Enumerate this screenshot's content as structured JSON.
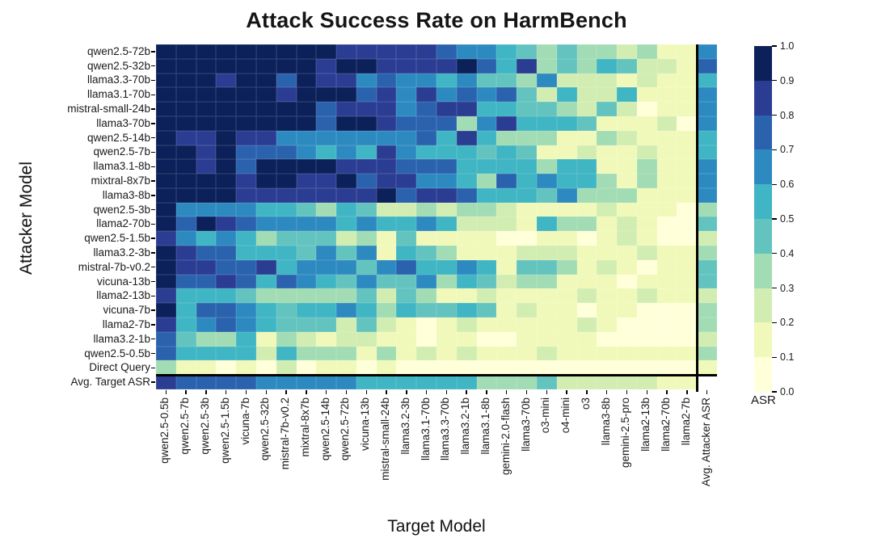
{
  "title": "Attack Success Rate on HarmBench",
  "x_axis_label": "Target Model",
  "y_axis_label": "Attacker Model",
  "colorbar": {
    "label": "ASR",
    "tick_labels": [
      "1.0",
      "0.9",
      "0.8",
      "0.7",
      "0.6",
      "0.5",
      "0.4",
      "0.3",
      "0.2",
      "0.1",
      "0.0"
    ],
    "bin_colors_low_to_high": [
      "#ffffd9",
      "#f0f9b9",
      "#d2edb2",
      "#a2dcb4",
      "#63c3bf",
      "#40b5c4",
      "#2d8ac0",
      "#2a62ae",
      "#2b3d93",
      "#0c2059"
    ],
    "empty_cell_color": "#ffffff"
  },
  "chart_data": {
    "type": "heatmap",
    "title": "Attack Success Rate on HarmBench",
    "xlabel": "Target Model",
    "ylabel": "Attacker Model",
    "vmin": 0.0,
    "vmax": 1.0,
    "colormap": "YlGnBu, 10 discrete bins",
    "legend_position": "right colorbar labeled ASR",
    "separators": {
      "thick_vertical_line_before_column": "Avg. Attacker ASR",
      "thick_horizontal_line_before_row": "Avg. Target ASR"
    },
    "x_categories": [
      "qwen2.5-0.5b",
      "qwen2.5-7b",
      "qwen2.5-3b",
      "qwen2.5-1.5b",
      "vicuna-7b",
      "qwen2.5-32b",
      "mistral-7b-v0.2",
      "mixtral-8x7b",
      "qwen2.5-14b",
      "qwen2.5-72b",
      "vicuna-13b",
      "mistral-small-24b",
      "llama3.2-3b",
      "llama3.1-70b",
      "llama3.3-70b",
      "llama3.2-1b",
      "llama3.1-8b",
      "gemini-2.0-flash",
      "llama3-70b",
      "o3-mini",
      "o4-mini",
      "o3",
      "llama3-8b",
      "gemini-2.5-pro",
      "llama2-13b",
      "llama2-70b",
      "llama2-7b",
      "Avg. Attacker ASR"
    ],
    "y_categories": [
      "qwen2.5-72b",
      "qwen2.5-32b",
      "llama3.3-70b",
      "llama3.1-70b",
      "mistral-small-24b",
      "llama3-70b",
      "qwen2.5-14b",
      "qwen2.5-7b",
      "llama3.1-8b",
      "mixtral-8x7b",
      "llama3-8b",
      "qwen2.5-3b",
      "llama2-70b",
      "qwen2.5-1.5b",
      "llama3.2-3b",
      "mistral-7b-v0.2",
      "vicuna-13b",
      "llama2-13b",
      "vicuna-7b",
      "llama2-7b",
      "llama3.2-1b",
      "qwen2.5-0.5b",
      "Direct Query",
      "Avg. Target ASR"
    ],
    "values": [
      [
        0.97,
        0.97,
        0.97,
        0.97,
        0.97,
        0.97,
        0.97,
        0.97,
        0.95,
        0.85,
        0.85,
        0.85,
        0.85,
        0.85,
        0.72,
        0.65,
        0.65,
        0.55,
        0.48,
        0.32,
        0.48,
        0.32,
        0.35,
        0.22,
        0.3,
        0.15,
        0.1,
        0.65
      ],
      [
        0.97,
        0.97,
        0.97,
        0.97,
        0.97,
        0.97,
        0.97,
        0.97,
        0.85,
        0.95,
        0.95,
        0.85,
        0.85,
        0.85,
        0.82,
        0.98,
        0.72,
        0.55,
        0.8,
        0.3,
        0.45,
        0.32,
        0.55,
        0.4,
        0.2,
        0.2,
        0.15,
        0.78
      ],
      [
        0.97,
        0.97,
        0.97,
        0.85,
        0.97,
        0.97,
        0.72,
        0.97,
        0.85,
        0.85,
        0.65,
        0.75,
        0.6,
        0.6,
        0.55,
        0.62,
        0.42,
        0.44,
        0.3,
        0.63,
        0.28,
        0.22,
        0.25,
        0.15,
        0.2,
        0.1,
        0.15,
        0.55
      ],
      [
        0.97,
        0.97,
        0.97,
        0.97,
        0.97,
        0.97,
        0.85,
        0.97,
        0.9,
        0.95,
        0.7,
        0.85,
        0.63,
        0.82,
        0.65,
        0.75,
        0.65,
        0.75,
        0.46,
        0.2,
        0.53,
        0.2,
        0.25,
        0.5,
        0.15,
        0.1,
        0.1,
        0.65
      ],
      [
        0.95,
        0.95,
        0.95,
        0.95,
        0.95,
        0.95,
        0.95,
        0.95,
        0.72,
        0.85,
        0.85,
        0.82,
        0.62,
        0.72,
        0.8,
        0.8,
        0.55,
        0.55,
        0.45,
        0.45,
        0.3,
        0.2,
        0.4,
        0.25,
        0.02,
        0.15,
        0.12,
        0.65
      ],
      [
        0.95,
        0.95,
        0.95,
        0.95,
        0.95,
        0.95,
        0.95,
        0.95,
        0.78,
        0.95,
        0.95,
        0.82,
        0.7,
        0.7,
        0.75,
        0.35,
        0.6,
        0.8,
        0.55,
        0.5,
        0.5,
        0.45,
        0.15,
        0.15,
        0.15,
        0.2,
        0.08,
        0.63
      ],
      [
        0.95,
        0.82,
        0.82,
        0.95,
        0.8,
        0.8,
        0.65,
        0.62,
        0.67,
        0.67,
        0.6,
        0.6,
        0.65,
        0.75,
        0.55,
        0.8,
        0.55,
        0.35,
        0.35,
        0.3,
        0.15,
        0.15,
        0.35,
        0.2,
        0.15,
        0.1,
        0.12,
        0.55
      ],
      [
        0.95,
        0.92,
        0.82,
        0.95,
        0.72,
        0.72,
        0.76,
        0.62,
        0.53,
        0.68,
        0.53,
        0.8,
        0.65,
        0.53,
        0.5,
        0.55,
        0.45,
        0.5,
        0.4,
        0.1,
        0.15,
        0.2,
        0.15,
        0.1,
        0.2,
        0.1,
        0.1,
        0.52
      ],
      [
        0.95,
        0.95,
        0.82,
        0.9,
        0.78,
        0.97,
        0.95,
        0.95,
        0.95,
        0.82,
        0.8,
        0.85,
        0.7,
        0.7,
        0.75,
        0.5,
        0.55,
        0.55,
        0.55,
        0.3,
        0.55,
        0.5,
        0.15,
        0.15,
        0.35,
        0.15,
        0.18,
        0.65
      ],
      [
        0.95,
        0.95,
        0.92,
        0.92,
        0.8,
        0.97,
        0.95,
        0.82,
        0.8,
        0.95,
        0.72,
        0.82,
        0.82,
        0.6,
        0.6,
        0.5,
        0.35,
        0.7,
        0.5,
        0.65,
        0.5,
        0.5,
        0.3,
        0.15,
        0.3,
        0.1,
        0.1,
        0.63
      ],
      [
        0.95,
        0.93,
        0.93,
        0.9,
        0.82,
        0.82,
        0.82,
        0.82,
        0.82,
        0.82,
        0.8,
        0.95,
        0.72,
        0.8,
        0.8,
        0.7,
        0.5,
        0.5,
        0.5,
        0.45,
        0.6,
        0.35,
        0.35,
        0.3,
        0.15,
        0.15,
        0.18,
        0.62
      ],
      [
        0.95,
        0.6,
        0.65,
        0.65,
        0.63,
        0.55,
        0.55,
        0.48,
        0.3,
        0.55,
        0.48,
        0.28,
        0.28,
        0.32,
        0.2,
        0.3,
        0.3,
        0.2,
        0.1,
        0.15,
        0.15,
        0.15,
        0.25,
        0.1,
        0.1,
        0.1,
        0.05,
        0.32
      ],
      [
        0.95,
        0.75,
        0.95,
        0.8,
        0.7,
        0.6,
        0.6,
        0.65,
        0.65,
        0.55,
        0.6,
        0.55,
        0.55,
        0.65,
        0.55,
        0.2,
        0.2,
        0.2,
        0.15,
        0.5,
        0.35,
        0.35,
        0.15,
        0.25,
        0.15,
        0.05,
        0.05,
        0.45
      ],
      [
        0.85,
        0.6,
        0.55,
        0.6,
        0.5,
        0.3,
        0.45,
        0.45,
        0.45,
        0.2,
        0.3,
        0.15,
        0.45,
        0.15,
        0.15,
        0.15,
        0.12,
        0.05,
        0.05,
        0.15,
        0.1,
        0.08,
        0.1,
        0.2,
        0.1,
        0.05,
        0.05,
        0.25
      ],
      [
        0.95,
        0.8,
        0.7,
        0.7,
        0.55,
        0.5,
        0.5,
        0.45,
        0.6,
        0.45,
        0.6,
        0.15,
        0.5,
        0.45,
        0.3,
        0.15,
        0.1,
        0.15,
        0.25,
        0.25,
        0.2,
        0.1,
        0.15,
        0.1,
        0.2,
        0.1,
        0.1,
        0.32
      ],
      [
        0.95,
        0.85,
        0.8,
        0.7,
        0.7,
        0.85,
        0.5,
        0.65,
        0.65,
        0.65,
        0.45,
        0.6,
        0.7,
        0.55,
        0.55,
        0.6,
        0.5,
        0.15,
        0.4,
        0.4,
        0.3,
        0.15,
        0.25,
        0.1,
        0.08,
        0.15,
        0.1,
        0.48
      ],
      [
        0.95,
        0.75,
        0.75,
        0.85,
        0.7,
        0.5,
        0.7,
        0.6,
        0.55,
        0.4,
        0.6,
        0.45,
        0.45,
        0.6,
        0.3,
        0.5,
        0.4,
        0.25,
        0.3,
        0.3,
        0.1,
        0.15,
        0.1,
        0.05,
        0.1,
        0.1,
        0.1,
        0.45
      ],
      [
        0.85,
        0.5,
        0.5,
        0.55,
        0.4,
        0.35,
        0.3,
        0.3,
        0.35,
        0.35,
        0.4,
        0.2,
        0.45,
        0.3,
        0.15,
        0.15,
        0.2,
        0.15,
        0.1,
        0.15,
        0.15,
        0.2,
        0.1,
        0.15,
        0.2,
        0.1,
        0.1,
        0.25
      ],
      [
        0.95,
        0.5,
        0.75,
        0.75,
        0.65,
        0.5,
        0.45,
        0.5,
        0.5,
        0.6,
        0.55,
        0.35,
        0.55,
        0.45,
        0.4,
        0.5,
        0.4,
        0.12,
        0.25,
        0.1,
        0.1,
        0.05,
        0.12,
        0.1,
        0.05,
        0.05,
        0.05,
        0.33
      ],
      [
        0.85,
        0.5,
        0.65,
        0.7,
        0.65,
        0.55,
        0.45,
        0.45,
        0.45,
        0.25,
        0.4,
        0.2,
        0.15,
        0.05,
        0.12,
        0.2,
        0.12,
        0.1,
        0.1,
        0.12,
        0.1,
        0.2,
        0.1,
        0.05,
        0.05,
        0.05,
        0.05,
        0.3
      ],
      [
        0.7,
        0.4,
        0.3,
        0.3,
        0.5,
        0.15,
        0.3,
        0.2,
        0.15,
        0.2,
        0.25,
        0.15,
        0.1,
        0.05,
        0.1,
        0.1,
        0.05,
        0.05,
        0.1,
        0.1,
        0.1,
        0.1,
        0.05,
        0.05,
        0.05,
        0.05,
        0.05,
        0.22
      ],
      [
        0.78,
        0.55,
        0.55,
        0.55,
        0.55,
        0.2,
        0.5,
        0.35,
        0.35,
        0.35,
        0.18,
        0.35,
        0.15,
        0.2,
        0.15,
        0.22,
        0.1,
        0.1,
        0.15,
        0.22,
        0.18,
        0.18,
        0.1,
        0.1,
        0.1,
        0.1,
        0.1,
        0.3
      ],
      [
        0.35,
        0.18,
        0.18,
        0.05,
        0.15,
        0.08,
        0.25,
        0.08,
        0.15,
        0.15,
        0.08,
        0.1,
        0.08,
        0.08,
        0.05,
        0.05,
        0.05,
        0.05,
        0.05,
        0.05,
        0.05,
        0.05,
        0.05,
        0.05,
        0.05,
        0.05,
        0.05,
        0.1
      ],
      [
        0.82,
        0.72,
        0.72,
        0.72,
        0.72,
        0.65,
        0.65,
        0.65,
        0.65,
        0.65,
        0.55,
        0.55,
        0.55,
        0.55,
        0.5,
        0.5,
        0.38,
        0.38,
        0.38,
        0.42,
        0.25,
        0.25,
        0.2,
        0.2,
        0.2,
        0.15,
        0.1,
        null
      ]
    ]
  }
}
